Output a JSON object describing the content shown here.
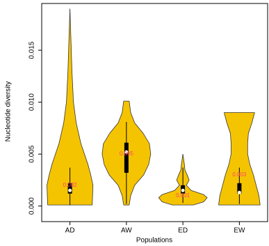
{
  "chart_data": {
    "type": "violin",
    "x_label": "Populations",
    "y_label": "Nucleotide diversity",
    "categories": [
      "AD",
      "AW",
      "ED",
      "EW"
    ],
    "color": "#f5c400",
    "label_color": "#ff4070",
    "ylim": [
      -0.0015,
      0.0195
    ],
    "yticks": [
      {
        "value": 0,
        "label": "0.000"
      },
      0.005,
      {
        "value": 0.01,
        "label": "0.010"
      },
      0.015
    ],
    "values": [
      0.002,
      0.005,
      0.001,
      0.003
    ],
    "violins": [
      {
        "y": [
          0.0001,
          0.002,
          0.003,
          0.004,
          0.006,
          0.008,
          0.01,
          0.013,
          0.016,
          0.019
        ],
        "width": [
          0.89,
          0.92,
          0.83,
          0.72,
          0.44,
          0.25,
          0.14,
          0.08,
          0.04,
          0
        ],
        "whisker_low": 0.0001,
        "q1": 0.0012,
        "median": 0.0015,
        "q3": 0.0022,
        "whisker_high": 0.0037
      },
      {
        "y": [
          0.0001,
          0.001,
          0.002,
          0.003,
          0.004,
          0.005,
          0.006,
          0.007,
          0.008,
          0.009,
          0.0101
        ],
        "width": [
          0.11,
          0.17,
          0.33,
          0.69,
          0.89,
          0.97,
          0.92,
          0.67,
          0.33,
          0.17,
          0.11
        ],
        "whisker_low": 0.0002,
        "q1": 0.0032,
        "median": 0.0052,
        "q3": 0.0061,
        "whisker_high": 0.0081
      },
      {
        "y": [
          0.0001,
          0.0004,
          0.0008,
          0.0011,
          0.0015,
          0.002,
          0.0025,
          0.003,
          0.0035,
          0.004,
          0.005
        ],
        "width": [
          0.42,
          0.83,
          0.97,
          0.83,
          0.33,
          0.14,
          0.25,
          0.17,
          0.08,
          0.06,
          0
        ],
        "whisker_low": 0.0003,
        "q1": 0.0012,
        "median": 0.0015,
        "q3": 0.002,
        "whisker_high": 0.0037
      },
      {
        "y": [
          0.0001,
          0.001,
          0.002,
          0.003,
          0.004,
          0.005,
          0.006,
          0.007,
          0.008,
          0.009
        ],
        "width": [
          0.83,
          0.78,
          0.67,
          0.56,
          0.42,
          0.33,
          0.33,
          0.36,
          0.5,
          0.61
        ],
        "whisker_low": 0.0002,
        "q1": 0.0012,
        "median": 0.0013,
        "q3": 0.0022,
        "whisker_high": 0.0037
      }
    ]
  }
}
